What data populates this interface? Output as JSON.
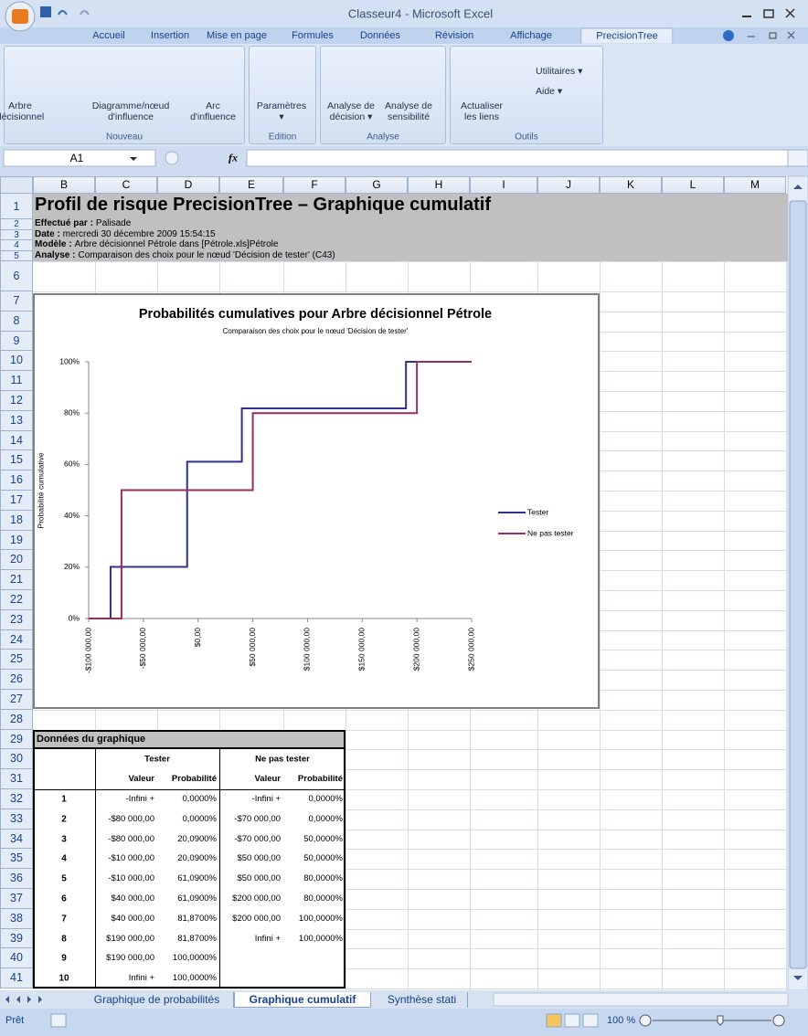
{
  "window": {
    "title": "Classeur4 - Microsoft Excel"
  },
  "ribbon": {
    "tabs": [
      "Accueil",
      "Insertion",
      "Mise en page",
      "Formules",
      "Données",
      "Révision",
      "Affichage",
      "PrecisionTree"
    ],
    "active_tab": 7,
    "groups": [
      {
        "name": "Nouveau",
        "buttons": [
          [
            "Arbre",
            "décisionnel"
          ],
          [
            "Diagramme/nœud",
            "d'influence"
          ],
          [
            "Arc",
            "d'influence"
          ]
        ]
      },
      {
        "name": "Edition",
        "buttons": [
          [
            "Paramètres",
            "▾"
          ]
        ]
      },
      {
        "name": "Analyse",
        "buttons": [
          [
            "Analyse de",
            "décision ▾"
          ],
          [
            "Analyse de",
            "sensibilité"
          ]
        ]
      },
      {
        "name": "Outils",
        "buttons": [
          [
            "Actualiser",
            "les liens"
          ]
        ],
        "small_buttons": [
          "Utilitaires ▾",
          "Aide ▾"
        ]
      }
    ]
  },
  "formula_bar": {
    "name_box": "A1",
    "fx": "fx"
  },
  "columns": [
    "B",
    "C",
    "D",
    "E",
    "F",
    "G",
    "H",
    "I",
    "J",
    "K",
    "L",
    "M"
  ],
  "row_numbers": [
    1,
    2,
    3,
    4,
    5,
    6,
    7,
    8,
    9,
    10,
    11,
    12,
    13,
    14,
    15,
    16,
    17,
    18,
    19,
    20,
    21,
    22,
    23,
    24,
    25,
    26,
    27,
    28,
    29,
    30,
    31,
    32,
    33,
    34,
    35,
    36,
    37,
    38,
    39,
    40,
    41
  ],
  "report": {
    "title": "Profil de risque PrecisionTree – Graphique cumulatif",
    "lines": [
      {
        "label": "Effectué par :",
        "value": "Palisade"
      },
      {
        "label": "Date :",
        "value": "mercredi 30 décembre 2009 15:54:15"
      },
      {
        "label": "Modèle :",
        "value": "Arbre décisionnel Pétrole dans [Pétrole.xls]Pétrole"
      },
      {
        "label": "Analyse :",
        "value": "Comparaison des choix pour le nœud 'Décision de tester' (C43)"
      }
    ]
  },
  "chart_data": {
    "type": "line",
    "step": true,
    "title": "Probabilités cumulatives pour Arbre décisionnel Pétrole",
    "subtitle": "Comparaison des choix pour le nœud 'Décision de tester'",
    "ylabel": "Probabilité cumulative",
    "xlim": [
      -100000,
      250000
    ],
    "ylim": [
      0,
      100
    ],
    "xticks": [
      {
        "value": -100000,
        "label": "-$100 000,00"
      },
      {
        "value": -50000,
        "label": "-$50 000,00"
      },
      {
        "value": 0,
        "label": "$0,00"
      },
      {
        "value": 50000,
        "label": "$50 000,00"
      },
      {
        "value": 100000,
        "label": "$100 000,00"
      },
      {
        "value": 150000,
        "label": "$150 000,00"
      },
      {
        "value": 200000,
        "label": "$200 000,00"
      },
      {
        "value": 250000,
        "label": "$250 000,00"
      }
    ],
    "yticks": [
      {
        "value": 0,
        "label": "0%"
      },
      {
        "value": 20,
        "label": "20%"
      },
      {
        "value": 40,
        "label": "40%"
      },
      {
        "value": 60,
        "label": "60%"
      },
      {
        "value": 80,
        "label": "80%"
      },
      {
        "value": 100,
        "label": "100%"
      }
    ],
    "grid": false,
    "legend": "right",
    "series": [
      {
        "name": "Tester",
        "color": "#2e3192",
        "x": [
          -100000,
          -80000,
          -80000,
          -10000,
          -10000,
          40000,
          40000,
          190000,
          190000,
          250000
        ],
        "values": [
          0,
          0,
          20.09,
          20.09,
          61.09,
          61.09,
          81.87,
          81.87,
          100,
          100
        ]
      },
      {
        "name": "Ne pas tester",
        "color": "#9b2d5a",
        "x": [
          -100000,
          -70000,
          -70000,
          50000,
          50000,
          200000,
          200000,
          250000
        ],
        "values": [
          0,
          0,
          50,
          50,
          80,
          80,
          100,
          100
        ]
      }
    ]
  },
  "table": {
    "title": "Données du graphique",
    "groups": [
      "Tester",
      "Ne pas tester"
    ],
    "headers": [
      "Valeur",
      "Probabilité",
      "Valeur",
      "Probabilité"
    ],
    "rows": [
      {
        "n": 1,
        "cells": [
          "-Infini +",
          "0,0000%",
          "-Infini +",
          "0,0000%"
        ]
      },
      {
        "n": 2,
        "cells": [
          "-$80 000,00",
          "0,0000%",
          "-$70 000,00",
          "0,0000%"
        ]
      },
      {
        "n": 3,
        "cells": [
          "-$80 000,00",
          "20,0900%",
          "-$70 000,00",
          "50,0000%"
        ]
      },
      {
        "n": 4,
        "cells": [
          "-$10 000,00",
          "20,0900%",
          "$50 000,00",
          "50,0000%"
        ]
      },
      {
        "n": 5,
        "cells": [
          "-$10 000,00",
          "61,0900%",
          "$50 000,00",
          "80,0000%"
        ]
      },
      {
        "n": 6,
        "cells": [
          "$40 000,00",
          "61,0900%",
          "$200 000,00",
          "80,0000%"
        ]
      },
      {
        "n": 7,
        "cells": [
          "$40 000,00",
          "81,8700%",
          "$200 000,00",
          "100,0000%"
        ]
      },
      {
        "n": 8,
        "cells": [
          "$190 000,00",
          "81,8700%",
          "Infini +",
          "100,0000%"
        ]
      },
      {
        "n": 9,
        "cells": [
          "$190 000,00",
          "100,0000%"
        ]
      },
      {
        "n": 10,
        "cells": [
          "Infini +",
          "100,0000%"
        ]
      }
    ]
  },
  "sheet_tabs": {
    "tabs": [
      "Graphique de probabilités",
      "Graphique cumulatif",
      "Synthèse stati"
    ],
    "active": 1
  },
  "status_bar": {
    "text": "Prêt",
    "zoom": "100 %"
  }
}
